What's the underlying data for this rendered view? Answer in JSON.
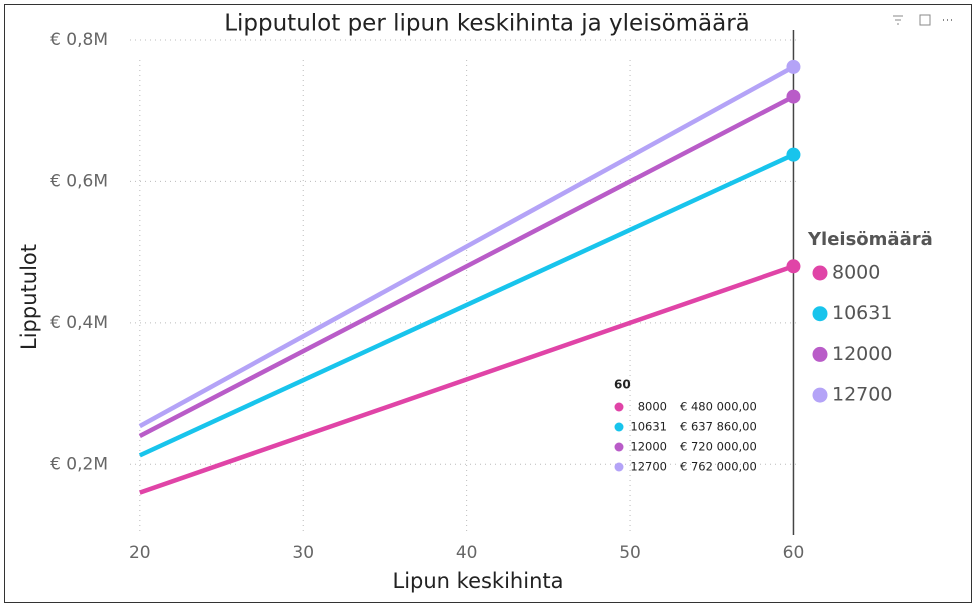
{
  "chart_data": {
    "type": "line",
    "title": "Lipputulot per lipun keskihinta ja yleisömäärä",
    "x_label": "Lipun keskihinta",
    "y_label": "Lipputulot",
    "x": [
      20,
      60
    ],
    "series": [
      {
        "name": "8000",
        "color": "#e044a7",
        "values": [
          160000,
          480000
        ],
        "value_labels": [
          null,
          "€ 480 000,00"
        ]
      },
      {
        "name": "10631",
        "color": "#18c4ec",
        "values": [
          212620,
          637860
        ],
        "value_labels": [
          null,
          "€ 637 860,00"
        ]
      },
      {
        "name": "12000",
        "color": "#b95cc8",
        "values": [
          240000,
          720000
        ],
        "value_labels": [
          null,
          "€ 720 000,00"
        ]
      },
      {
        "name": "12700",
        "color": "#b4a3f7",
        "values": [
          254000,
          762000
        ],
        "value_labels": [
          null,
          "€ 762 000,00"
        ]
      }
    ],
    "xlim": [
      19.4,
      60.4
    ],
    "xticks": [
      20,
      30,
      40,
      50,
      60
    ],
    "ylim": [
      100000,
      800000
    ],
    "yticks": [
      {
        "value": 200000,
        "label": "€ 0,2M"
      },
      {
        "value": 400000,
        "label": "€ 0,4M"
      },
      {
        "value": 600000,
        "label": "€ 0,6M"
      },
      {
        "value": 800000,
        "label": "€ 0,8M"
      }
    ],
    "grid": true,
    "legend_title": "Yleisömäärä",
    "legend_position": "right",
    "hover_x": 60
  }
}
